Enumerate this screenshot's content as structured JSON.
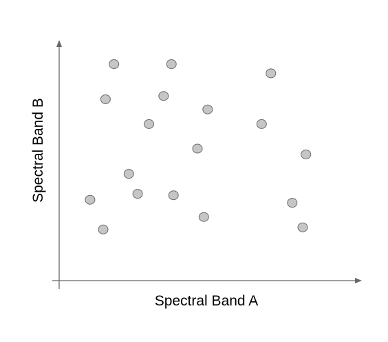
{
  "chart_data": {
    "type": "scatter",
    "xlabel": "Spectral Band A",
    "ylabel": "Spectral Band B",
    "xlim": [
      0,
      100
    ],
    "ylim": [
      0,
      100
    ],
    "grid": false,
    "axis_numbers_shown": false,
    "point_fill": "#c6c6c6",
    "point_stroke": "#6b6b6b",
    "axis_color": "#666666",
    "points": [
      {
        "x": 18.8,
        "y": 91.8
      },
      {
        "x": 38.5,
        "y": 91.8
      },
      {
        "x": 72.6,
        "y": 87.9
      },
      {
        "x": 15.9,
        "y": 76.9
      },
      {
        "x": 35.8,
        "y": 78.3
      },
      {
        "x": 50.9,
        "y": 72.6
      },
      {
        "x": 30.8,
        "y": 66.4
      },
      {
        "x": 69.4,
        "y": 66.4
      },
      {
        "x": 47.4,
        "y": 56.0
      },
      {
        "x": 84.6,
        "y": 53.5
      },
      {
        "x": 23.9,
        "y": 45.3
      },
      {
        "x": 26.9,
        "y": 36.8
      },
      {
        "x": 39.2,
        "y": 36.2
      },
      {
        "x": 10.6,
        "y": 34.3
      },
      {
        "x": 79.9,
        "y": 33.0
      },
      {
        "x": 49.6,
        "y": 27.0
      },
      {
        "x": 15.1,
        "y": 21.7
      },
      {
        "x": 83.5,
        "y": 22.6
      }
    ]
  }
}
